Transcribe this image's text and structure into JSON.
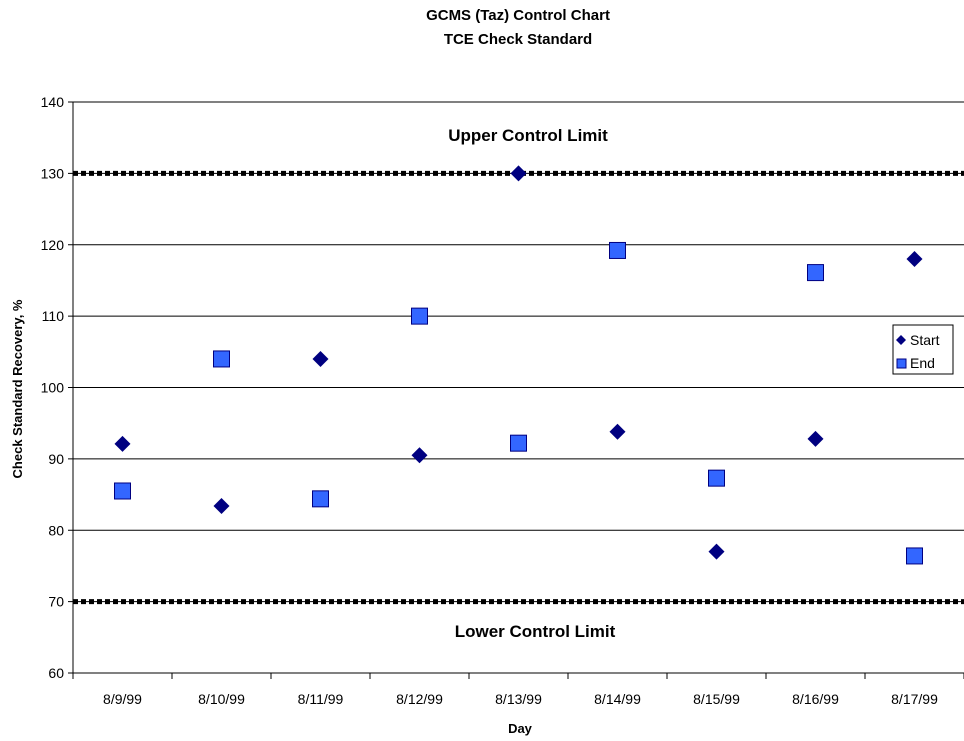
{
  "chart_data": {
    "type": "scatter",
    "title": "GCMS (Taz) Control Chart",
    "subtitle": "TCE Check Standard",
    "xlabel": "Day",
    "ylabel": "Check Standard Recovery, %",
    "categories": [
      "8/9/99",
      "8/10/99",
      "8/11/99",
      "8/12/99",
      "8/13/99",
      "8/14/99",
      "8/15/99",
      "8/16/99",
      "8/17/99"
    ],
    "ylim": [
      60,
      140
    ],
    "yticks": [
      60,
      70,
      80,
      90,
      100,
      110,
      120,
      130,
      140
    ],
    "grid": true,
    "legend_position": "right",
    "series": [
      {
        "name": "Start",
        "marker": "diamond",
        "color": "#000080",
        "values": [
          92.1,
          83.4,
          104,
          90.5,
          130,
          93.8,
          77,
          92.8,
          118
        ]
      },
      {
        "name": "End",
        "marker": "square",
        "color": "#3366FF",
        "values": [
          85.5,
          104,
          84.4,
          110,
          92.2,
          119.2,
          87.3,
          116.1,
          76.4
        ]
      }
    ],
    "reference_lines": [
      {
        "label": "Upper Control Limit",
        "value": 130
      },
      {
        "label": "Lower Control Limit",
        "value": 70
      }
    ]
  }
}
